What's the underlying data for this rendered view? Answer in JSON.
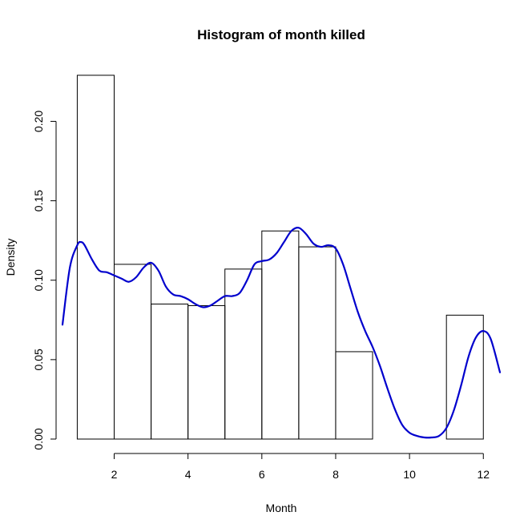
{
  "chart_data": {
    "type": "histogram",
    "title": "Histogram of month killed",
    "xlabel": "Month",
    "ylabel": "Density",
    "xlim": [
      0.6,
      12.45
    ],
    "ylim": [
      0,
      0.232
    ],
    "x_ticks": [
      2,
      4,
      6,
      8,
      10,
      12
    ],
    "x_tick_labels": [
      "2",
      "4",
      "6",
      "8",
      "10",
      "12"
    ],
    "y_ticks": [
      0.0,
      0.05,
      0.1,
      0.15,
      0.2
    ],
    "y_tick_labels": [
      "0.00",
      "0.05",
      "0.10",
      "0.15",
      "0.20"
    ],
    "bars": [
      {
        "x0": 1,
        "x1": 2,
        "density": 0.229
      },
      {
        "x0": 2,
        "x1": 3,
        "density": 0.11
      },
      {
        "x0": 3,
        "x1": 4,
        "density": 0.085
      },
      {
        "x0": 4,
        "x1": 5,
        "density": 0.084
      },
      {
        "x0": 5,
        "x1": 6,
        "density": 0.107
      },
      {
        "x0": 6,
        "x1": 7,
        "density": 0.131
      },
      {
        "x0": 7,
        "x1": 8,
        "density": 0.121
      },
      {
        "x0": 8,
        "x1": 9,
        "density": 0.055
      },
      {
        "x0": 9,
        "x1": 10,
        "density": 0.0
      },
      {
        "x0": 10,
        "x1": 11,
        "density": 0.0
      },
      {
        "x0": 11,
        "x1": 12,
        "density": 0.078
      }
    ],
    "density_curve": {
      "color": "#0000cd",
      "x": [
        0.6,
        0.8,
        1.0,
        1.1,
        1.2,
        1.4,
        1.6,
        1.8,
        2.0,
        2.2,
        2.4,
        2.6,
        2.8,
        3.0,
        3.2,
        3.4,
        3.6,
        3.8,
        4.0,
        4.2,
        4.4,
        4.6,
        4.8,
        5.0,
        5.2,
        5.4,
        5.6,
        5.8,
        6.0,
        6.2,
        6.4,
        6.6,
        6.8,
        7.0,
        7.2,
        7.4,
        7.6,
        7.8,
        8.0,
        8.2,
        8.4,
        8.6,
        8.8,
        9.0,
        9.2,
        9.4,
        9.6,
        9.8,
        10.0,
        10.2,
        10.4,
        10.6,
        10.8,
        11.0,
        11.2,
        11.4,
        11.6,
        11.8,
        12.0,
        12.2,
        12.45
      ],
      "y": [
        0.072,
        0.108,
        0.122,
        0.124,
        0.122,
        0.113,
        0.106,
        0.105,
        0.103,
        0.101,
        0.099,
        0.102,
        0.108,
        0.111,
        0.106,
        0.096,
        0.091,
        0.09,
        0.088,
        0.085,
        0.083,
        0.084,
        0.087,
        0.09,
        0.09,
        0.092,
        0.1,
        0.11,
        0.112,
        0.113,
        0.117,
        0.124,
        0.131,
        0.133,
        0.129,
        0.123,
        0.121,
        0.122,
        0.12,
        0.11,
        0.095,
        0.08,
        0.068,
        0.058,
        0.046,
        0.032,
        0.019,
        0.009,
        0.004,
        0.002,
        0.001,
        0.001,
        0.002,
        0.007,
        0.018,
        0.034,
        0.052,
        0.064,
        0.068,
        0.063,
        0.042
      ]
    },
    "grid": false,
    "legend": "none"
  }
}
